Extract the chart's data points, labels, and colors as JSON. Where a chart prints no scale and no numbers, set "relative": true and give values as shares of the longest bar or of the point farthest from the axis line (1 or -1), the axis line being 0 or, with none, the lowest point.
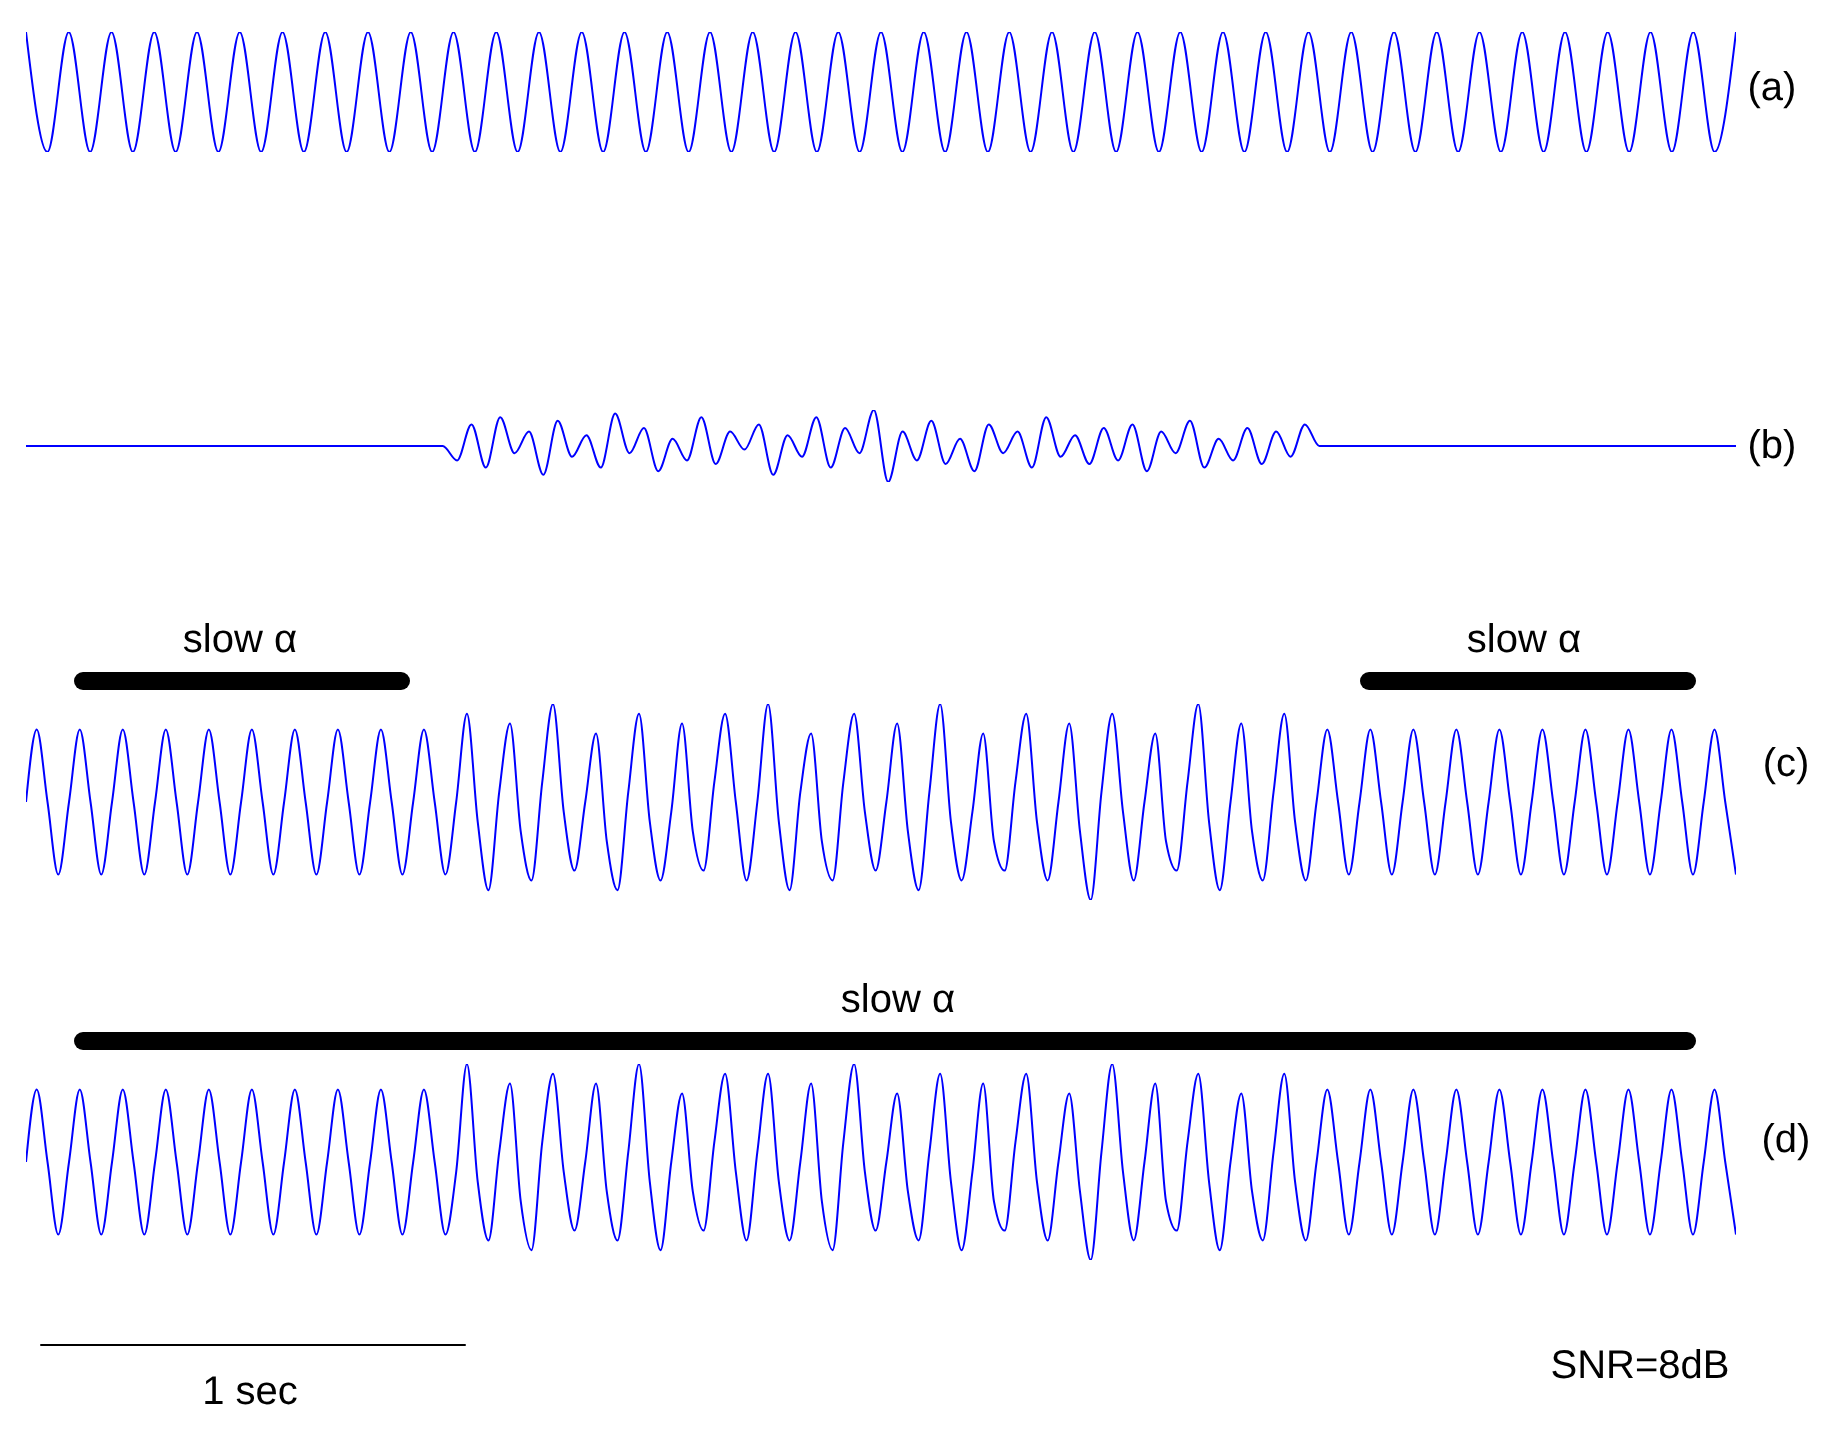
{
  "chart_data": [
    {
      "type": "line",
      "relative": true,
      "annotations": [
        "(a)"
      ],
      "categories": [
        null,
        null,
        null,
        null,
        null,
        null,
        null,
        null,
        null,
        null,
        null,
        null,
        null,
        null,
        null,
        null,
        null,
        null,
        null,
        null,
        null,
        null,
        null,
        null,
        null,
        null,
        null,
        null,
        null,
        null,
        null,
        null,
        null,
        null,
        null,
        null,
        null,
        null,
        null,
        null,
        null,
        null,
        null,
        null,
        null,
        null,
        null,
        null,
        null,
        null,
        null,
        null,
        null,
        null,
        null,
        null,
        null,
        null,
        null,
        null,
        null,
        null,
        null,
        null,
        null,
        null,
        null,
        null,
        null,
        null,
        null,
        null,
        null,
        null,
        null,
        null,
        null,
        null,
        null,
        null,
        null
      ],
      "series": [
        {
          "color": "#0000ff",
          "values": [
            1,
            0,
            1,
            0,
            1,
            0,
            1,
            0,
            1,
            0,
            1,
            0,
            1,
            0,
            1,
            0,
            1,
            0,
            1,
            0,
            1,
            0,
            1,
            0,
            1,
            0,
            1,
            0,
            1,
            0,
            1,
            0,
            1,
            0,
            1,
            0,
            1,
            0,
            1,
            0,
            1,
            0,
            1,
            0,
            1,
            0,
            1,
            0,
            1,
            0,
            1,
            0,
            1,
            0,
            1,
            0,
            1,
            0,
            1,
            0,
            1,
            0,
            1,
            0,
            1,
            0,
            1,
            0,
            1,
            0,
            1,
            0,
            1,
            0,
            1,
            0,
            1,
            0,
            1,
            0,
            1
          ]
        }
      ]
    },
    {
      "type": "line",
      "relative": true,
      "annotations": [
        "(b)"
      ],
      "categories": [
        null,
        null,
        null,
        null,
        null,
        null,
        null,
        null,
        null,
        null,
        null,
        null,
        null,
        null,
        null,
        null,
        null,
        null,
        null,
        null,
        null,
        null,
        null,
        null,
        null,
        null,
        null,
        null,
        null,
        null,
        null,
        null,
        null,
        null,
        null,
        null,
        null,
        null,
        null,
        null,
        null,
        null,
        null,
        null,
        null,
        null,
        null,
        null,
        null,
        null,
        null,
        null,
        null,
        null,
        null,
        null,
        null,
        null,
        null,
        null,
        null,
        null,
        null,
        null,
        null,
        null,
        null,
        null,
        null,
        null,
        null,
        null,
        null,
        null,
        null,
        null,
        null,
        null,
        null,
        null,
        null,
        null,
        null,
        null,
        null,
        null,
        null,
        null,
        null,
        null,
        null,
        null,
        null,
        null,
        null,
        null,
        null,
        null,
        null,
        null,
        null,
        null,
        null,
        null,
        null,
        null,
        null,
        null,
        null,
        null,
        null,
        null,
        null,
        null,
        null,
        null,
        null,
        null,
        null,
        null
      ],
      "series": [
        {
          "color": "#0000ff",
          "values": [
            0.5,
            0.5,
            0.5,
            0.5,
            0.5,
            0.5,
            0.5,
            0.5,
            0.5,
            0.5,
            0.5,
            0.5,
            0.5,
            0.5,
            0.5,
            0.5,
            0.5,
            0.5,
            0.5,
            0.5,
            0.5,
            0.5,
            0.5,
            0.5,
            0.5,
            0.5,
            0.5,
            0.5,
            0.5,
            0.5,
            0.3,
            0.8,
            0.2,
            0.9,
            0.4,
            0.7,
            0.1,
            0.85,
            0.35,
            0.65,
            0.2,
            0.95,
            0.4,
            0.75,
            0.15,
            0.6,
            0.3,
            0.9,
            0.25,
            0.7,
            0.45,
            0.8,
            0.1,
            0.65,
            0.35,
            0.9,
            0.2,
            0.75,
            0.4,
            1,
            0,
            0.7,
            0.3,
            0.85,
            0.25,
            0.6,
            0.15,
            0.8,
            0.4,
            0.7,
            0.2,
            0.9,
            0.35,
            0.65,
            0.25,
            0.75,
            0.3,
            0.8,
            0.15,
            0.7,
            0.4,
            0.85,
            0.2,
            0.6,
            0.3,
            0.75,
            0.25,
            0.7,
            0.35,
            0.8,
            0.5,
            0.5,
            0.5,
            0.5,
            0.5,
            0.5,
            0.5,
            0.5,
            0.5,
            0.5,
            0.5,
            0.5,
            0.5,
            0.5,
            0.5,
            0.5,
            0.5,
            0.5,
            0.5,
            0.5,
            0.5,
            0.5,
            0.5,
            0.5,
            0.5,
            0.5,
            0.5,
            0.5,
            0.5,
            0.5
          ]
        }
      ]
    },
    {
      "type": "line",
      "relative": true,
      "annotations": [
        "slow α",
        "slow α",
        "(c)"
      ],
      "categories": [
        null,
        null,
        null,
        null,
        null,
        null,
        null,
        null,
        null,
        null,
        null,
        null,
        null,
        null,
        null,
        null,
        null,
        null,
        null,
        null,
        null,
        null,
        null,
        null,
        null,
        null,
        null,
        null,
        null,
        null,
        null,
        null,
        null,
        null,
        null,
        null,
        null,
        null,
        null,
        null,
        null,
        null,
        null,
        null,
        null,
        null,
        null,
        null,
        null,
        null,
        null,
        null,
        null,
        null,
        null,
        null,
        null,
        null,
        null,
        null,
        null,
        null,
        null,
        null,
        null,
        null,
        null,
        null,
        null,
        null,
        null,
        null,
        null,
        null,
        null,
        null,
        null,
        null,
        null,
        null,
        null,
        null,
        null,
        null,
        null,
        null,
        null,
        null,
        null,
        null,
        null,
        null,
        null,
        null,
        null,
        null,
        null,
        null,
        null,
        null,
        null,
        null,
        null,
        null,
        null,
        null,
        null,
        null,
        null,
        null,
        null,
        null,
        null,
        null,
        null,
        null,
        null,
        null,
        null,
        null,
        null,
        null,
        null,
        null,
        null,
        null,
        null,
        null,
        null,
        null,
        null,
        null,
        null,
        null,
        null,
        null,
        null,
        null,
        null,
        null,
        null,
        null,
        null,
        null,
        null,
        null,
        null,
        null,
        null,
        null,
        null,
        null,
        null,
        null,
        null,
        null,
        null,
        null,
        null,
        null
      ],
      "series": [
        {
          "color": "#0000ff",
          "values": [
            0.5,
            0.87,
            0.5,
            0.13,
            0.5,
            0.87,
            0.5,
            0.13,
            0.5,
            0.87,
            0.5,
            0.13,
            0.5,
            0.87,
            0.5,
            0.13,
            0.5,
            0.87,
            0.5,
            0.13,
            0.5,
            0.87,
            0.5,
            0.13,
            0.5,
            0.87,
            0.5,
            0.13,
            0.5,
            0.87,
            0.5,
            0.13,
            0.5,
            0.87,
            0.5,
            0.13,
            0.5,
            0.87,
            0.5,
            0.13,
            0.5,
            0.95,
            0.4,
            0.05,
            0.55,
            0.9,
            0.35,
            0.1,
            0.6,
            1,
            0.45,
            0.15,
            0.5,
            0.85,
            0.3,
            0.05,
            0.55,
            0.95,
            0.4,
            0.1,
            0.45,
            0.9,
            0.35,
            0.15,
            0.6,
            0.95,
            0.5,
            0.1,
            0.5,
            1,
            0.4,
            0.05,
            0.55,
            0.85,
            0.3,
            0.1,
            0.6,
            0.95,
            0.45,
            0.15,
            0.5,
            0.9,
            0.35,
            0.05,
            0.55,
            1,
            0.4,
            0.1,
            0.45,
            0.85,
            0.3,
            0.15,
            0.6,
            0.95,
            0.4,
            0.1,
            0.5,
            0.9,
            0.35,
            0,
            0.55,
            0.95,
            0.45,
            0.1,
            0.5,
            0.85,
            0.3,
            0.15,
            0.6,
            1,
            0.4,
            0.05,
            0.5,
            0.9,
            0.35,
            0.1,
            0.55,
            0.95,
            0.4,
            0.1,
            0.5,
            0.87,
            0.5,
            0.13,
            0.5,
            0.87,
            0.5,
            0.13,
            0.5,
            0.87,
            0.5,
            0.13,
            0.5,
            0.87,
            0.5,
            0.13,
            0.5,
            0.87,
            0.5,
            0.13,
            0.5,
            0.87,
            0.5,
            0.13,
            0.5,
            0.87,
            0.5,
            0.13,
            0.5,
            0.87,
            0.5,
            0.13,
            0.5,
            0.87,
            0.5,
            0.13,
            0.5,
            0.87,
            0.5,
            0.13
          ]
        }
      ]
    },
    {
      "type": "line",
      "relative": true,
      "annotations": [
        "slow α",
        "(d)",
        "1 sec",
        "SNR=8dB"
      ],
      "categories": [
        null,
        null,
        null,
        null,
        null,
        null,
        null,
        null,
        null,
        null,
        null,
        null,
        null,
        null,
        null,
        null,
        null,
        null,
        null,
        null,
        null,
        null,
        null,
        null,
        null,
        null,
        null,
        null,
        null,
        null,
        null,
        null,
        null,
        null,
        null,
        null,
        null,
        null,
        null,
        null,
        null,
        null,
        null,
        null,
        null,
        null,
        null,
        null,
        null,
        null,
        null,
        null,
        null,
        null,
        null,
        null,
        null,
        null,
        null,
        null,
        null,
        null,
        null,
        null,
        null,
        null,
        null,
        null,
        null,
        null,
        null,
        null,
        null,
        null,
        null,
        null,
        null,
        null,
        null,
        null,
        null,
        null,
        null,
        null,
        null,
        null,
        null,
        null,
        null,
        null,
        null,
        null,
        null,
        null,
        null,
        null,
        null,
        null,
        null,
        null,
        null,
        null,
        null,
        null,
        null,
        null,
        null,
        null,
        null,
        null,
        null,
        null,
        null,
        null,
        null,
        null,
        null,
        null,
        null,
        null,
        null,
        null,
        null,
        null,
        null,
        null,
        null,
        null,
        null,
        null,
        null,
        null,
        null,
        null,
        null,
        null,
        null,
        null,
        null,
        null,
        null,
        null,
        null,
        null,
        null,
        null,
        null,
        null,
        null,
        null,
        null,
        null,
        null,
        null,
        null,
        null,
        null,
        null,
        null,
        null
      ],
      "series": [
        {
          "color": "#0000ff",
          "values": [
            0.5,
            0.87,
            0.5,
            0.13,
            0.5,
            0.87,
            0.5,
            0.13,
            0.5,
            0.87,
            0.5,
            0.13,
            0.5,
            0.87,
            0.5,
            0.13,
            0.5,
            0.87,
            0.5,
            0.13,
            0.5,
            0.87,
            0.5,
            0.13,
            0.5,
            0.87,
            0.5,
            0.13,
            0.5,
            0.87,
            0.5,
            0.13,
            0.5,
            0.87,
            0.5,
            0.13,
            0.5,
            0.87,
            0.5,
            0.13,
            0.45,
            1,
            0.4,
            0.1,
            0.55,
            0.9,
            0.3,
            0.05,
            0.6,
            0.95,
            0.45,
            0.15,
            0.5,
            0.9,
            0.35,
            0.1,
            0.55,
            1,
            0.4,
            0.05,
            0.5,
            0.85,
            0.35,
            0.15,
            0.6,
            0.95,
            0.45,
            0.1,
            0.55,
            0.95,
            0.4,
            0.1,
            0.5,
            0.9,
            0.3,
            0.05,
            0.6,
            1,
            0.45,
            0.15,
            0.5,
            0.85,
            0.35,
            0.1,
            0.55,
            0.95,
            0.4,
            0.05,
            0.45,
            0.9,
            0.3,
            0.15,
            0.6,
            0.95,
            0.4,
            0.1,
            0.5,
            0.85,
            0.35,
            0,
            0.55,
            1,
            0.45,
            0.1,
            0.5,
            0.9,
            0.3,
            0.15,
            0.6,
            0.95,
            0.4,
            0.05,
            0.5,
            0.85,
            0.35,
            0.1,
            0.55,
            0.95,
            0.4,
            0.1,
            0.5,
            0.87,
            0.5,
            0.13,
            0.5,
            0.87,
            0.5,
            0.13,
            0.5,
            0.87,
            0.5,
            0.13,
            0.5,
            0.87,
            0.5,
            0.13,
            0.5,
            0.87,
            0.5,
            0.13,
            0.5,
            0.87,
            0.5,
            0.13,
            0.5,
            0.87,
            0.5,
            0.13,
            0.5,
            0.87,
            0.5,
            0.13,
            0.5,
            0.87,
            0.5,
            0.13,
            0.5,
            0.87,
            0.5,
            0.13
          ]
        }
      ]
    }
  ]
}
